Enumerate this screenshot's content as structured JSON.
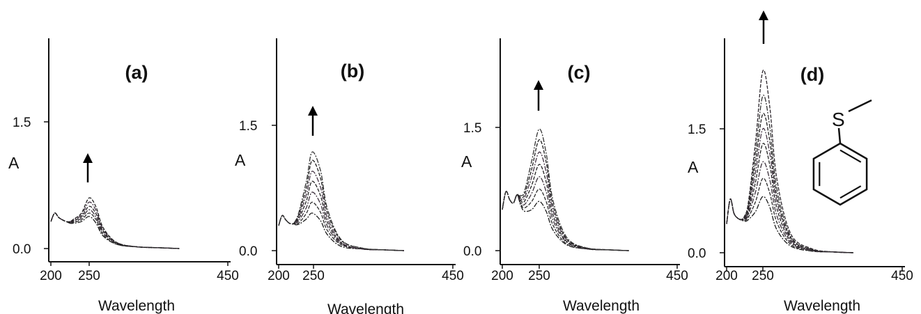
{
  "chart_data": [
    {
      "type": "line",
      "panel_label": "(a)",
      "xlabel": "Wavelength",
      "ylabel": "A",
      "xlim": [
        200,
        450
      ],
      "ylim": [
        0.0,
        1.5
      ],
      "xticks": [
        "200",
        "250",
        "450"
      ],
      "yticks": [
        "0.0",
        "1.5"
      ],
      "trend_arrow": "up",
      "peak_x": 250,
      "series": [
        {
          "x": [
            200,
            205,
            210,
            215,
            220,
            225,
            230,
            240,
            250,
            260,
            270,
            290,
            320,
            350,
            380
          ],
          "y": [
            0.32,
            0.42,
            0.37,
            0.34,
            0.32,
            0.3,
            0.3,
            0.32,
            0.38,
            0.3,
            0.15,
            0.05,
            0.02,
            0.01,
            0.0
          ]
        },
        {
          "x": [
            200,
            205,
            210,
            215,
            220,
            225,
            230,
            240,
            250,
            260,
            270,
            290,
            320,
            350,
            380
          ],
          "y": [
            0.32,
            0.42,
            0.37,
            0.34,
            0.32,
            0.3,
            0.31,
            0.34,
            0.42,
            0.34,
            0.17,
            0.05,
            0.02,
            0.01,
            0.0
          ]
        },
        {
          "x": [
            200,
            205,
            210,
            215,
            220,
            225,
            230,
            240,
            250,
            260,
            270,
            290,
            320,
            350,
            380
          ],
          "y": [
            0.32,
            0.42,
            0.37,
            0.34,
            0.32,
            0.31,
            0.32,
            0.36,
            0.46,
            0.37,
            0.19,
            0.06,
            0.02,
            0.01,
            0.0
          ]
        },
        {
          "x": [
            200,
            205,
            210,
            215,
            220,
            225,
            230,
            240,
            250,
            260,
            270,
            290,
            320,
            350,
            380
          ],
          "y": [
            0.32,
            0.42,
            0.37,
            0.34,
            0.32,
            0.31,
            0.33,
            0.38,
            0.5,
            0.41,
            0.21,
            0.06,
            0.02,
            0.01,
            0.0
          ]
        },
        {
          "x": [
            200,
            205,
            210,
            215,
            220,
            225,
            230,
            240,
            250,
            260,
            270,
            290,
            320,
            350,
            380
          ],
          "y": [
            0.32,
            0.42,
            0.37,
            0.34,
            0.32,
            0.32,
            0.34,
            0.4,
            0.55,
            0.45,
            0.23,
            0.07,
            0.02,
            0.01,
            0.0
          ]
        },
        {
          "x": [
            200,
            205,
            210,
            215,
            220,
            225,
            230,
            240,
            250,
            260,
            270,
            290,
            320,
            350,
            380
          ],
          "y": [
            0.32,
            0.42,
            0.37,
            0.34,
            0.32,
            0.32,
            0.35,
            0.42,
            0.6,
            0.49,
            0.25,
            0.07,
            0.02,
            0.01,
            0.0
          ]
        }
      ]
    },
    {
      "type": "line",
      "panel_label": "(b)",
      "xlabel": "Wavelength",
      "ylabel": "A",
      "xlim": [
        200,
        450
      ],
      "ylim": [
        0.0,
        1.5
      ],
      "xticks": [
        "200",
        "250",
        "450"
      ],
      "yticks": [
        "0.0",
        "1.5"
      ],
      "trend_arrow": "up",
      "peak_x": 248,
      "series": [
        {
          "x": [
            200,
            205,
            210,
            215,
            220,
            225,
            230,
            240,
            248,
            260,
            270,
            290,
            320,
            350,
            380
          ],
          "y": [
            0.3,
            0.42,
            0.37,
            0.33,
            0.32,
            0.31,
            0.32,
            0.38,
            0.45,
            0.36,
            0.19,
            0.05,
            0.02,
            0.01,
            0.0
          ]
        },
        {
          "x": [
            200,
            205,
            210,
            215,
            220,
            225,
            230,
            240,
            248,
            260,
            270,
            290,
            320,
            350,
            380
          ],
          "y": [
            0.3,
            0.42,
            0.37,
            0.33,
            0.32,
            0.32,
            0.34,
            0.45,
            0.58,
            0.46,
            0.24,
            0.07,
            0.02,
            0.01,
            0.0
          ]
        },
        {
          "x": [
            200,
            205,
            210,
            215,
            220,
            225,
            230,
            240,
            248,
            260,
            270,
            290,
            320,
            350,
            380
          ],
          "y": [
            0.3,
            0.42,
            0.37,
            0.33,
            0.32,
            0.33,
            0.37,
            0.52,
            0.7,
            0.56,
            0.29,
            0.08,
            0.02,
            0.01,
            0.0
          ]
        },
        {
          "x": [
            200,
            205,
            210,
            215,
            220,
            225,
            230,
            240,
            248,
            260,
            270,
            290,
            320,
            350,
            380
          ],
          "y": [
            0.3,
            0.42,
            0.37,
            0.33,
            0.32,
            0.34,
            0.4,
            0.6,
            0.83,
            0.66,
            0.34,
            0.09,
            0.02,
            0.01,
            0.0
          ]
        },
        {
          "x": [
            200,
            205,
            210,
            215,
            220,
            225,
            230,
            240,
            248,
            260,
            270,
            290,
            320,
            350,
            380
          ],
          "y": [
            0.3,
            0.42,
            0.37,
            0.33,
            0.32,
            0.35,
            0.43,
            0.68,
            0.95,
            0.76,
            0.39,
            0.1,
            0.02,
            0.01,
            0.0
          ]
        },
        {
          "x": [
            200,
            205,
            210,
            215,
            220,
            225,
            230,
            240,
            248,
            260,
            270,
            290,
            320,
            350,
            380
          ],
          "y": [
            0.3,
            0.42,
            0.37,
            0.33,
            0.32,
            0.36,
            0.46,
            0.76,
            1.08,
            0.87,
            0.45,
            0.12,
            0.03,
            0.01,
            0.0
          ]
        },
        {
          "x": [
            200,
            205,
            210,
            215,
            220,
            225,
            230,
            240,
            248,
            260,
            270,
            290,
            320,
            350,
            380
          ],
          "y": [
            0.3,
            0.42,
            0.37,
            0.33,
            0.32,
            0.37,
            0.49,
            0.84,
            1.18,
            0.96,
            0.5,
            0.13,
            0.03,
            0.01,
            0.0
          ]
        }
      ]
    },
    {
      "type": "line",
      "panel_label": "(c)",
      "xlabel": "Wavelength",
      "ylabel": "A",
      "xlim": [
        200,
        450
      ],
      "ylim": [
        0.0,
        1.5
      ],
      "xticks": [
        "200",
        "250",
        "450"
      ],
      "yticks": [
        "0.0",
        "1.5"
      ],
      "trend_arrow": "up",
      "peak_x": 250,
      "series": [
        {
          "x": [
            200,
            205,
            210,
            215,
            220,
            225,
            230,
            240,
            250,
            260,
            270,
            290,
            320,
            350,
            380
          ],
          "y": [
            0.5,
            0.72,
            0.62,
            0.58,
            0.68,
            0.55,
            0.48,
            0.5,
            0.6,
            0.48,
            0.25,
            0.07,
            0.02,
            0.01,
            0.0
          ]
        },
        {
          "x": [
            200,
            205,
            210,
            215,
            220,
            225,
            230,
            240,
            250,
            260,
            270,
            290,
            320,
            350,
            380
          ],
          "y": [
            0.5,
            0.72,
            0.62,
            0.58,
            0.68,
            0.57,
            0.52,
            0.6,
            0.75,
            0.6,
            0.31,
            0.08,
            0.02,
            0.01,
            0.0
          ]
        },
        {
          "x": [
            200,
            205,
            210,
            215,
            220,
            225,
            230,
            240,
            250,
            260,
            270,
            290,
            320,
            350,
            380
          ],
          "y": [
            0.5,
            0.72,
            0.62,
            0.58,
            0.68,
            0.59,
            0.56,
            0.7,
            0.9,
            0.72,
            0.37,
            0.1,
            0.02,
            0.01,
            0.0
          ]
        },
        {
          "x": [
            200,
            205,
            210,
            215,
            220,
            225,
            230,
            240,
            250,
            260,
            270,
            290,
            320,
            350,
            380
          ],
          "y": [
            0.5,
            0.72,
            0.62,
            0.58,
            0.68,
            0.61,
            0.6,
            0.8,
            1.05,
            0.84,
            0.43,
            0.11,
            0.03,
            0.01,
            0.0
          ]
        },
        {
          "x": [
            200,
            205,
            210,
            215,
            220,
            225,
            230,
            240,
            250,
            260,
            270,
            290,
            320,
            350,
            380
          ],
          "y": [
            0.5,
            0.72,
            0.62,
            0.58,
            0.68,
            0.63,
            0.64,
            0.9,
            1.2,
            0.96,
            0.49,
            0.13,
            0.03,
            0.01,
            0.0
          ]
        },
        {
          "x": [
            200,
            205,
            210,
            215,
            220,
            225,
            230,
            240,
            250,
            260,
            270,
            290,
            320,
            350,
            380
          ],
          "y": [
            0.5,
            0.72,
            0.62,
            0.58,
            0.68,
            0.65,
            0.68,
            1.0,
            1.35,
            1.08,
            0.55,
            0.14,
            0.03,
            0.01,
            0.0
          ]
        },
        {
          "x": [
            200,
            205,
            210,
            215,
            220,
            225,
            230,
            240,
            250,
            260,
            270,
            290,
            320,
            350,
            380
          ],
          "y": [
            0.5,
            0.72,
            0.62,
            0.58,
            0.68,
            0.67,
            0.72,
            1.1,
            1.48,
            1.19,
            0.61,
            0.16,
            0.03,
            0.01,
            0.0
          ]
        }
      ]
    },
    {
      "type": "line",
      "panel_label": "(d)",
      "xlabel": "Wavelength",
      "ylabel": "A",
      "xlim": [
        200,
        450
      ],
      "ylim": [
        0.0,
        1.5
      ],
      "xticks": [
        "200",
        "250",
        "450"
      ],
      "yticks": [
        "0.0",
        "1.5"
      ],
      "trend_arrow": "up",
      "peak_x": 250,
      "series": [
        {
          "x": [
            200,
            205,
            210,
            215,
            220,
            225,
            230,
            240,
            250,
            260,
            270,
            290,
            320,
            350,
            380
          ],
          "y": [
            0.35,
            0.65,
            0.48,
            0.42,
            0.4,
            0.38,
            0.4,
            0.5,
            0.68,
            0.55,
            0.28,
            0.08,
            0.02,
            0.01,
            0.0
          ]
        },
        {
          "x": [
            200,
            205,
            210,
            215,
            220,
            225,
            230,
            240,
            250,
            260,
            270,
            290,
            320,
            350,
            380
          ],
          "y": [
            0.35,
            0.65,
            0.48,
            0.42,
            0.4,
            0.39,
            0.43,
            0.62,
            0.9,
            0.72,
            0.37,
            0.1,
            0.02,
            0.01,
            0.0
          ]
        },
        {
          "x": [
            200,
            205,
            210,
            215,
            220,
            225,
            230,
            240,
            250,
            260,
            270,
            290,
            320,
            350,
            380
          ],
          "y": [
            0.35,
            0.65,
            0.48,
            0.42,
            0.4,
            0.4,
            0.46,
            0.74,
            1.1,
            0.88,
            0.45,
            0.12,
            0.03,
            0.01,
            0.0
          ]
        },
        {
          "x": [
            200,
            205,
            210,
            215,
            220,
            225,
            230,
            240,
            250,
            260,
            270,
            290,
            320,
            350,
            380
          ],
          "y": [
            0.35,
            0.65,
            0.48,
            0.42,
            0.4,
            0.41,
            0.49,
            0.86,
            1.32,
            1.06,
            0.54,
            0.14,
            0.03,
            0.01,
            0.0
          ]
        },
        {
          "x": [
            200,
            205,
            210,
            215,
            220,
            225,
            230,
            240,
            250,
            260,
            270,
            290,
            320,
            350,
            380
          ],
          "y": [
            0.35,
            0.65,
            0.48,
            0.42,
            0.4,
            0.42,
            0.52,
            0.98,
            1.5,
            1.2,
            0.62,
            0.16,
            0.03,
            0.01,
            0.0
          ]
        },
        {
          "x": [
            200,
            205,
            210,
            215,
            220,
            225,
            230,
            240,
            250,
            260,
            270,
            290,
            320,
            350,
            380
          ],
          "y": [
            0.35,
            0.65,
            0.48,
            0.42,
            0.4,
            0.43,
            0.55,
            1.1,
            1.68,
            1.35,
            0.69,
            0.18,
            0.04,
            0.01,
            0.0
          ]
        },
        {
          "x": [
            200,
            205,
            210,
            215,
            220,
            225,
            230,
            240,
            250,
            260,
            270,
            290,
            320,
            350,
            380
          ],
          "y": [
            0.35,
            0.65,
            0.48,
            0.42,
            0.4,
            0.44,
            0.58,
            1.22,
            1.9,
            1.52,
            0.78,
            0.2,
            0.04,
            0.01,
            0.0
          ]
        },
        {
          "x": [
            200,
            205,
            210,
            215,
            220,
            225,
            230,
            240,
            250,
            260,
            270,
            290,
            320,
            350,
            380
          ],
          "y": [
            0.35,
            0.65,
            0.48,
            0.42,
            0.4,
            0.45,
            0.61,
            1.35,
            2.2,
            1.76,
            0.9,
            0.23,
            0.05,
            0.01,
            0.0
          ]
        }
      ],
      "inset": {
        "type": "structure",
        "atom_label": "S"
      }
    }
  ]
}
